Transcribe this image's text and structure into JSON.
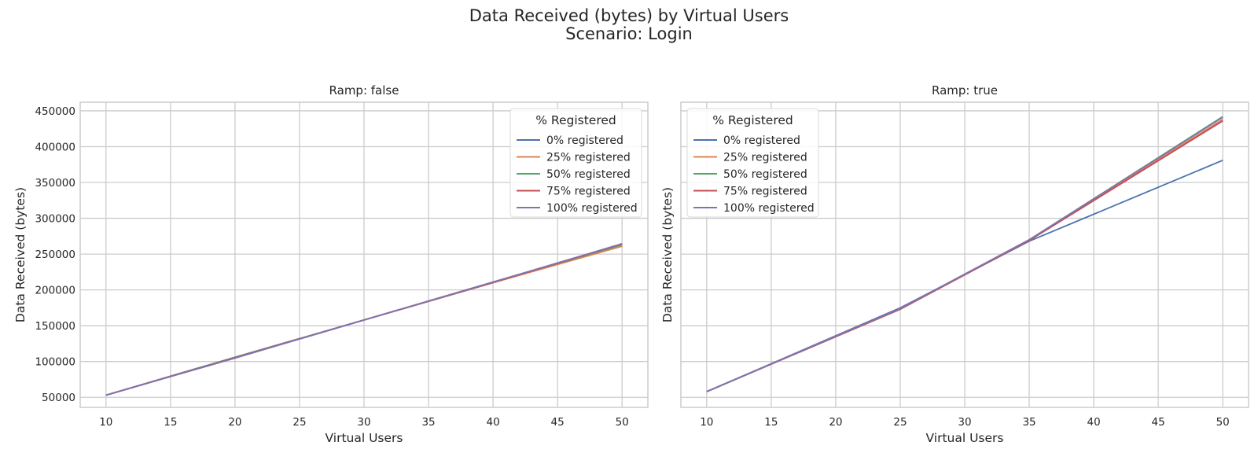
{
  "figure": {
    "title": "Data Received (bytes) by Virtual Users",
    "subtitle": "Scenario: Login"
  },
  "legend_title": "% Registered",
  "colors": {
    "0% registered": "#4c72b0",
    "25% registered": "#dd8452",
    "50% registered": "#55a868",
    "75% registered": "#c44e52",
    "100% registered": "#8172b3"
  },
  "chart_data": [
    {
      "type": "line",
      "title": "Ramp: false",
      "xlabel": "Virtual Users",
      "ylabel": "Data Received (bytes)",
      "xlim": [
        8,
        52
      ],
      "ylim": [
        36000,
        462000
      ],
      "xticks": [
        10,
        15,
        20,
        25,
        30,
        35,
        40,
        45,
        50
      ],
      "yticks": [
        50000,
        100000,
        150000,
        200000,
        250000,
        300000,
        350000,
        400000,
        450000
      ],
      "grid": true,
      "legend_position": "top-right",
      "x": [
        10,
        20,
        30,
        40,
        50
      ],
      "series": [
        {
          "name": "0% registered",
          "values": [
            53000,
            105000,
            158000,
            210000,
            264000
          ]
        },
        {
          "name": "25% registered",
          "values": [
            53000,
            106000,
            158000,
            210000,
            261000
          ]
        },
        {
          "name": "50% registered",
          "values": [
            53000,
            106000,
            158000,
            211000,
            263000
          ]
        },
        {
          "name": "75% registered",
          "values": [
            53000,
            105500,
            158000,
            210500,
            264000
          ]
        },
        {
          "name": "100% registered",
          "values": [
            53000,
            105000,
            158000,
            211000,
            264500
          ]
        }
      ]
    },
    {
      "type": "line",
      "title": "Ramp: true",
      "xlabel": "Virtual Users",
      "ylabel": "Data Received (bytes)",
      "xlim": [
        8,
        52
      ],
      "ylim": [
        36000,
        462000
      ],
      "xticks": [
        10,
        15,
        20,
        25,
        30,
        35,
        40,
        45,
        50
      ],
      "yticks": [],
      "grid": true,
      "legend_position": "top-left",
      "x": [
        10,
        25,
        35,
        50
      ],
      "series": [
        {
          "name": "0% registered",
          "values": [
            58000,
            175000,
            268000,
            381000
          ]
        },
        {
          "name": "25% registered",
          "values": [
            58000,
            173000,
            270000,
            438000
          ]
        },
        {
          "name": "50% registered",
          "values": [
            58000,
            174000,
            270000,
            442000
          ]
        },
        {
          "name": "75% registered",
          "values": [
            58000,
            173000,
            269000,
            436000
          ]
        },
        {
          "name": "100% registered",
          "values": [
            58000,
            174000,
            270000,
            441000
          ]
        }
      ]
    }
  ]
}
